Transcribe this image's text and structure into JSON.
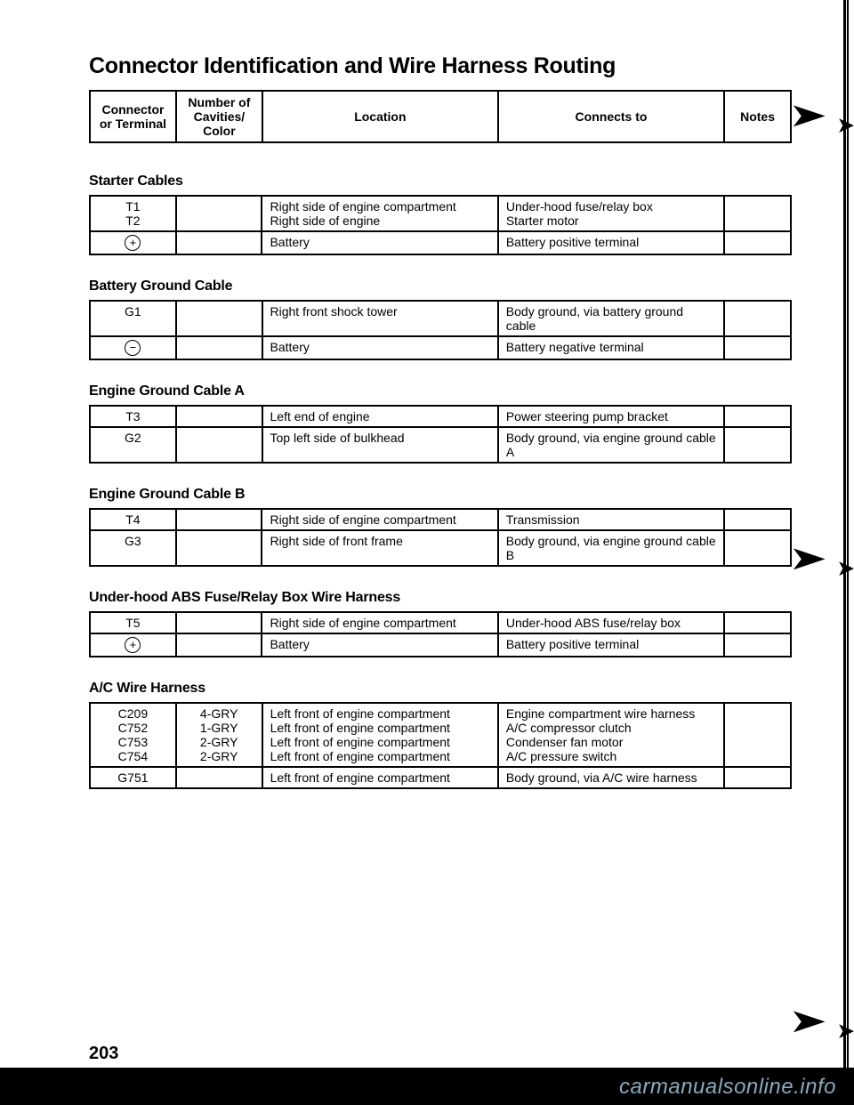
{
  "title": "Connector Identification and Wire Harness Routing",
  "pageNumber": "203",
  "watermark": "carmanualsonline.info",
  "header": {
    "connector": "Connector or Terminal",
    "cavities": "Number of Cavities/ Color",
    "location": "Location",
    "connects": "Connects to",
    "notes": "Notes"
  },
  "sections": [
    {
      "heading": "Starter Cables",
      "rows": [
        {
          "conn": "T1\nT2",
          "cav": "",
          "loc": "Right side of engine compartment\nRight side of engine",
          "cto": "Under-hood fuse/relay box\nStarter motor",
          "notes": ""
        },
        {
          "sym": "+",
          "cav": "",
          "loc": "Battery",
          "cto": "Battery positive terminal",
          "notes": ""
        }
      ]
    },
    {
      "heading": "Battery Ground Cable",
      "rows": [
        {
          "conn": "G1",
          "cav": "",
          "loc": "Right front shock tower",
          "cto": "Body ground, via battery ground cable",
          "notes": ""
        },
        {
          "sym": "−",
          "cav": "",
          "loc": "Battery",
          "cto": "Battery negative terminal",
          "notes": ""
        }
      ]
    },
    {
      "heading": "Engine Ground Cable A",
      "rows": [
        {
          "conn": "T3",
          "cav": "",
          "loc": "Left end of engine",
          "cto": "Power steering pump bracket",
          "notes": ""
        },
        {
          "conn": "G2",
          "cav": "",
          "loc": "Top left side of bulkhead",
          "cto": "Body ground, via engine ground cable A",
          "notes": ""
        }
      ]
    },
    {
      "heading": "Engine Ground Cable B",
      "rows": [
        {
          "conn": "T4",
          "cav": "",
          "loc": "Right side of engine compartment",
          "cto": "Transmission",
          "notes": ""
        },
        {
          "conn": "G3",
          "cav": "",
          "loc": "Right side of front frame",
          "cto": "Body ground, via engine ground cable B",
          "notes": ""
        }
      ]
    },
    {
      "heading": "Under-hood ABS Fuse/Relay Box Wire Harness",
      "rows": [
        {
          "conn": "T5",
          "cav": "",
          "loc": "Right side of engine compartment",
          "cto": "Under-hood ABS fuse/relay box",
          "notes": ""
        },
        {
          "sym": "+",
          "cav": "",
          "loc": "Battery",
          "cto": "Battery positive terminal",
          "notes": ""
        }
      ]
    },
    {
      "heading": "A/C Wire Harness",
      "rows": [
        {
          "conn": "C209\nC752\nC753\nC754",
          "cav": "4-GRY\n1-GRY\n2-GRY\n2-GRY",
          "loc": "Left front of engine compartment\nLeft front of engine compartment\nLeft front of engine compartment\nLeft front of engine compartment",
          "cto": "Engine compartment wire harness\nA/C compressor clutch\nCondenser fan motor\nA/C pressure switch",
          "notes": ""
        },
        {
          "conn": "G751",
          "cav": "",
          "loc": "Left front of engine compartment",
          "cto": "Body ground, via A/C wire harness",
          "notes": ""
        }
      ]
    }
  ]
}
